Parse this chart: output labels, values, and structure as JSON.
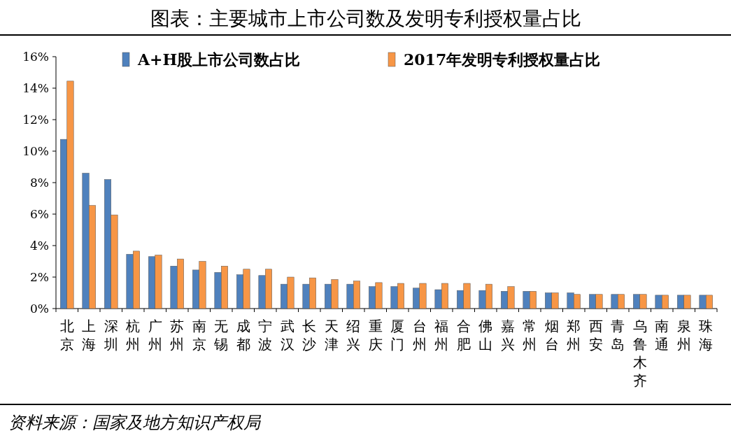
{
  "chart_data": {
    "type": "bar",
    "title": "图表：主要城市上市公司数及发明专利授权量占比",
    "categories": [
      "北京",
      "上海",
      "深圳",
      "杭州",
      "广州",
      "苏州",
      "南京",
      "无锡",
      "成都",
      "宁波",
      "武汉",
      "长沙",
      "天津",
      "绍兴",
      "重庆",
      "厦门",
      "台州",
      "福州",
      "合肥",
      "佛山",
      "嘉兴",
      "常州",
      "烟台",
      "郑州",
      "西安",
      "青岛",
      "乌鲁木齐",
      "南通",
      "泉州",
      "珠海"
    ],
    "series": [
      {
        "name": "A+H股上市公司数占比",
        "color": "#4f81bd",
        "values": [
          10.75,
          8.6,
          8.2,
          3.45,
          3.3,
          2.7,
          2.45,
          2.3,
          2.15,
          2.1,
          1.55,
          1.55,
          1.55,
          1.55,
          1.4,
          1.4,
          1.3,
          1.2,
          1.15,
          1.15,
          1.1,
          1.1,
          1.0,
          1.0,
          0.9,
          0.9,
          0.9,
          0.85,
          0.85,
          0.85
        ]
      },
      {
        "name": "2017年发明专利授权量占比",
        "color": "#f79646",
        "values": [
          14.45,
          6.55,
          5.95,
          3.65,
          3.4,
          3.15,
          3.0,
          2.7,
          2.5,
          2.5,
          2.0,
          1.95,
          1.85,
          1.75,
          1.65,
          1.6,
          1.6,
          1.6,
          1.6,
          1.55,
          1.4,
          1.1,
          1.0,
          0.9,
          0.9,
          0.9,
          0.9,
          0.85,
          0.85,
          0.85
        ]
      }
    ],
    "ylim": [
      0,
      16
    ],
    "yticks": [
      {
        "value": 0,
        "label": "0%"
      },
      {
        "value": 2,
        "label": "2%"
      },
      {
        "value": 4,
        "label": "4%"
      },
      {
        "value": 6,
        "label": "6%"
      },
      {
        "value": 8,
        "label": "8%"
      },
      {
        "value": 10,
        "label": "10%"
      },
      {
        "value": 12,
        "label": "12%"
      },
      {
        "value": 14,
        "label": "14%"
      },
      {
        "value": 16,
        "label": "16%"
      }
    ],
    "grid": false,
    "legend": "top",
    "annotations": [
      "资料来源：国家及地方知识产权局"
    ]
  }
}
